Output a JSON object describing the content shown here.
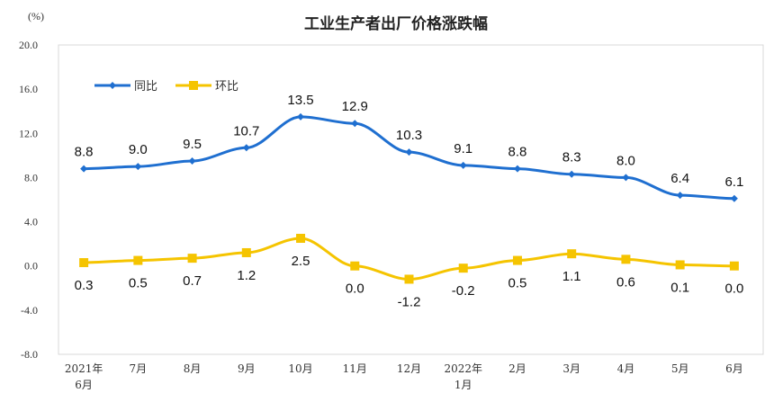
{
  "chart_data": {
    "type": "line",
    "title": "工业生产者出厂价格涨跌幅",
    "ylabel": "(%)",
    "xlabel": "",
    "ylim": [
      -8.0,
      20.0
    ],
    "yticks": [
      "20.0",
      "16.0",
      "12.0",
      "8.0",
      "4.0",
      "0.0",
      "-4.0",
      "-8.0"
    ],
    "ytick_values": [
      20,
      16,
      12,
      8,
      4,
      0,
      -4,
      -8
    ],
    "categories": [
      [
        "2021年",
        "6月"
      ],
      [
        "7月"
      ],
      [
        "8月"
      ],
      [
        "9月"
      ],
      [
        "10月"
      ],
      [
        "11月"
      ],
      [
        "12月"
      ],
      [
        "2022年",
        "1月"
      ],
      [
        "2月"
      ],
      [
        "3月"
      ],
      [
        "4月"
      ],
      [
        "5月"
      ],
      [
        "6月"
      ]
    ],
    "legend_position": "top-left",
    "grid": false,
    "series": [
      {
        "name": "同比",
        "color": "#1f6fd0",
        "marker": "diamond",
        "values": [
          8.8,
          9.0,
          9.5,
          10.7,
          13.5,
          12.9,
          10.3,
          9.1,
          8.8,
          8.3,
          8.0,
          6.4,
          6.1
        ],
        "labels": [
          "8.8",
          "9.0",
          "9.5",
          "10.7",
          "13.5",
          "12.9",
          "10.3",
          "9.1",
          "8.8",
          "8.3",
          "8.0",
          "6.4",
          "6.1"
        ]
      },
      {
        "name": "环比",
        "color": "#f5c400",
        "marker": "square",
        "values": [
          0.3,
          0.5,
          0.7,
          1.2,
          2.5,
          0.0,
          -1.2,
          -0.2,
          0.5,
          1.1,
          0.6,
          0.1,
          0.0
        ],
        "labels": [
          "0.3",
          "0.5",
          "0.7",
          "1.2",
          "2.5",
          "0.0",
          "-1.2",
          "-0.2",
          "0.5",
          "1.1",
          "0.6",
          "0.1",
          "0.0"
        ]
      }
    ]
  }
}
